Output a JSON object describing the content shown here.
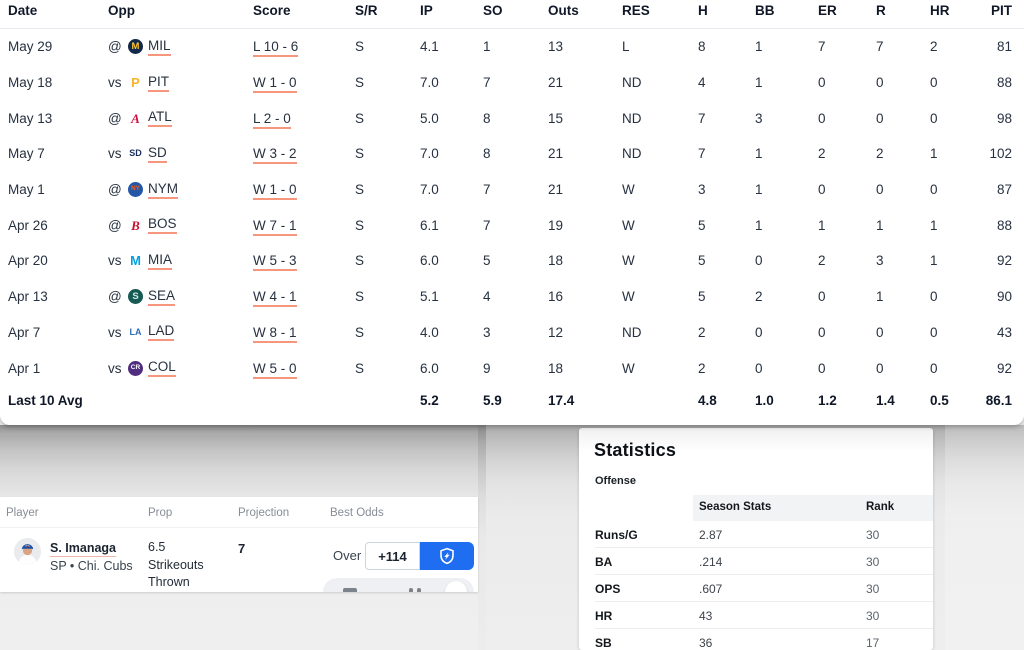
{
  "colors": {
    "accent_underline": "#f6967d",
    "fanduel_blue": "#1f6ef2",
    "header_text": "#101828",
    "body_text": "#273140"
  },
  "gamelog": {
    "columns": [
      "Date",
      "Opp",
      "Score",
      "S/R",
      "IP",
      "SO",
      "Outs",
      "RES",
      "H",
      "BB",
      "ER",
      "R",
      "HR",
      "PIT"
    ],
    "rows": [
      {
        "date": "May 29",
        "prefix": "@",
        "abbr": "MIL",
        "badge": {
          "shape": "circle",
          "text": "M",
          "bg": "#13294b",
          "fg": "#ffc52f"
        },
        "score": "L 10 - 6",
        "sr": "S",
        "ip": "4.1",
        "so": "1",
        "outs": "13",
        "res": "L",
        "h": "8",
        "bb": "1",
        "er": "7",
        "r": "7",
        "hr": "2",
        "pit": "81"
      },
      {
        "date": "May 18",
        "prefix": "vs",
        "abbr": "PIT",
        "badge": {
          "shape": "letter",
          "text": "P",
          "fg": "#f5b52a"
        },
        "score": "W 1 - 0",
        "sr": "S",
        "ip": "7.0",
        "so": "7",
        "outs": "21",
        "res": "ND",
        "h": "4",
        "bb": "1",
        "er": "0",
        "r": "0",
        "hr": "0",
        "pit": "88"
      },
      {
        "date": "May 13",
        "prefix": "@",
        "abbr": "ATL",
        "badge": {
          "shape": "letter",
          "text": "A",
          "fg": "#ce1141",
          "serif": true
        },
        "score": "L 2 - 0",
        "sr": "S",
        "ip": "5.0",
        "so": "8",
        "outs": "15",
        "res": "ND",
        "h": "7",
        "bb": "3",
        "er": "0",
        "r": "0",
        "hr": "0",
        "pit": "98"
      },
      {
        "date": "May 7",
        "prefix": "vs",
        "abbr": "SD",
        "badge": {
          "shape": "letter",
          "text": "SD",
          "fg": "#1b2f5e"
        },
        "score": "W 3 - 2",
        "sr": "S",
        "ip": "7.0",
        "so": "8",
        "outs": "21",
        "res": "ND",
        "h": "7",
        "bb": "1",
        "er": "2",
        "r": "2",
        "hr": "1",
        "pit": "102"
      },
      {
        "date": "May 1",
        "prefix": "@",
        "abbr": "NYM",
        "badge": {
          "shape": "circle",
          "text": "NY",
          "bg": "#2458a7",
          "fg": "#ff5910"
        },
        "score": "W 1 - 0",
        "sr": "S",
        "ip": "7.0",
        "so": "7",
        "outs": "21",
        "res": "W",
        "h": "3",
        "bb": "1",
        "er": "0",
        "r": "0",
        "hr": "0",
        "pit": "87"
      },
      {
        "date": "Apr 26",
        "prefix": "@",
        "abbr": "BOS",
        "badge": {
          "shape": "letter",
          "text": "B",
          "fg": "#c8102e",
          "serif": true
        },
        "score": "W 7 - 1",
        "sr": "S",
        "ip": "6.1",
        "so": "7",
        "outs": "19",
        "res": "W",
        "h": "5",
        "bb": "1",
        "er": "1",
        "r": "1",
        "hr": "1",
        "pit": "88"
      },
      {
        "date": "Apr 20",
        "prefix": "vs",
        "abbr": "MIA",
        "badge": {
          "shape": "letter",
          "text": "M",
          "fg": "#00a3e0"
        },
        "score": "W 5 - 3",
        "sr": "S",
        "ip": "6.0",
        "so": "5",
        "outs": "18",
        "res": "W",
        "h": "5",
        "bb": "0",
        "er": "2",
        "r": "3",
        "hr": "1",
        "pit": "92"
      },
      {
        "date": "Apr 13",
        "prefix": "@",
        "abbr": "SEA",
        "badge": {
          "shape": "circle",
          "text": "S",
          "bg": "#175a53",
          "fg": "#cfe8e5"
        },
        "score": "W 4 - 1",
        "sr": "S",
        "ip": "5.1",
        "so": "4",
        "outs": "16",
        "res": "W",
        "h": "5",
        "bb": "2",
        "er": "0",
        "r": "1",
        "hr": "0",
        "pit": "90"
      },
      {
        "date": "Apr 7",
        "prefix": "vs",
        "abbr": "LAD",
        "badge": {
          "shape": "letter",
          "text": "LA",
          "fg": "#2b6cb8"
        },
        "score": "W 8 - 1",
        "sr": "S",
        "ip": "4.0",
        "so": "3",
        "outs": "12",
        "res": "ND",
        "h": "2",
        "bb": "0",
        "er": "0",
        "r": "0",
        "hr": "0",
        "pit": "43"
      },
      {
        "date": "Apr 1",
        "prefix": "vs",
        "abbr": "COL",
        "badge": {
          "shape": "circle",
          "text": "CR",
          "bg": "#4f2d7f",
          "fg": "#ffffff"
        },
        "score": "W 5 - 0",
        "sr": "S",
        "ip": "6.0",
        "so": "9",
        "outs": "18",
        "res": "W",
        "h": "2",
        "bb": "0",
        "er": "0",
        "r": "0",
        "hr": "0",
        "pit": "92"
      }
    ],
    "average": {
      "label": "Last 10 Avg",
      "ip": "5.2",
      "so": "5.9",
      "outs": "17.4",
      "res": "",
      "h": "4.8",
      "bb": "1.0",
      "er": "1.2",
      "r": "1.4",
      "hr": "0.5",
      "pit": "86.1"
    }
  },
  "props": {
    "headers": [
      "Player",
      "Prop",
      "Projection",
      "Best Odds"
    ],
    "player": {
      "name": "S. Imanaga",
      "meta": "SP • Chi. Cubs"
    },
    "prop_lines": [
      "6.5",
      "Strikeouts",
      "Thrown"
    ],
    "projection": "7",
    "odds": {
      "side": "Over",
      "value": "+114",
      "book_icon": "fanduel-shield-icon"
    }
  },
  "statistics": {
    "title": "Statistics",
    "section": "Offense",
    "col_headers": [
      "Season Stats",
      "Rank"
    ],
    "rows": [
      {
        "label": "Runs/G",
        "value": "2.87",
        "rank": "30"
      },
      {
        "label": "BA",
        "value": ".214",
        "rank": "30"
      },
      {
        "label": "OPS",
        "value": ".607",
        "rank": "30"
      },
      {
        "label": "HR",
        "value": "43",
        "rank": "30"
      },
      {
        "label": "SB",
        "value": "36",
        "rank": "17"
      }
    ]
  }
}
